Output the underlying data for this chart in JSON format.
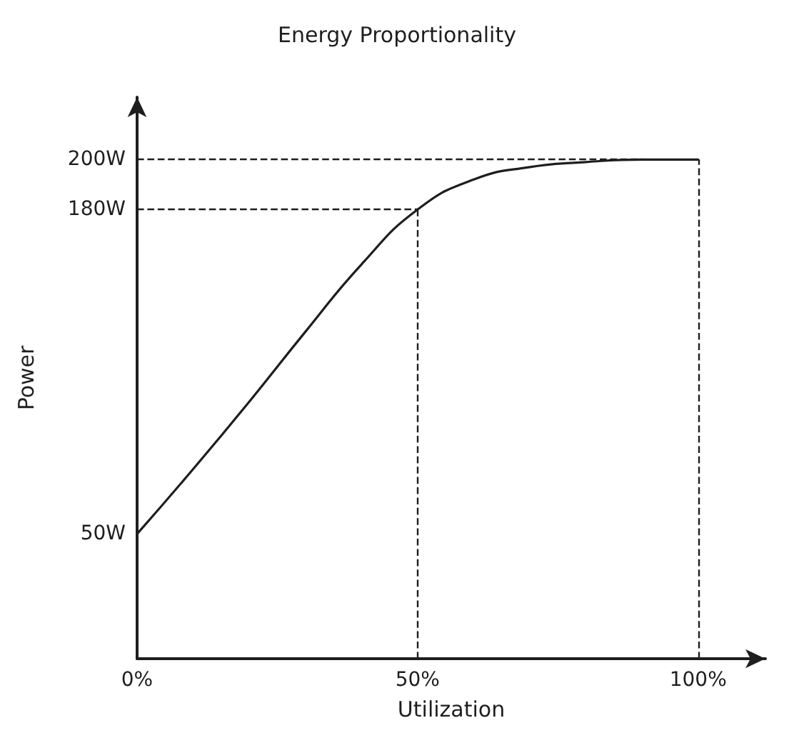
{
  "chart_data": {
    "type": "line",
    "title": "Energy Proportionality",
    "xlabel": "Utilization",
    "ylabel": "Power",
    "x": [
      0,
      10,
      20,
      30,
      40,
      50,
      60,
      70,
      80,
      90,
      100
    ],
    "series": [
      {
        "color": "#1e1e1e",
        "values": [
          50,
          76,
          103,
          131,
          158,
          180,
          192,
          197,
          199,
          200,
          200
        ]
      }
    ],
    "xlim": [
      0,
      112
    ],
    "ylim": [
      0,
      225
    ],
    "xticks": [
      {
        "value": 0,
        "label": "0%"
      },
      {
        "value": 50,
        "label": "50%"
      },
      {
        "value": 100,
        "label": "100%"
      }
    ],
    "yticks": [
      {
        "value": 50,
        "label": "50W"
      },
      {
        "value": 180,
        "label": "180W"
      },
      {
        "value": 200,
        "label": "200W"
      }
    ],
    "ref_lines": [
      {
        "axis": "y",
        "value": 200,
        "line_style": "dashed",
        "color": "#1e1e1e"
      },
      {
        "axis": "y",
        "value": 180,
        "line_style": "dashed",
        "color": "#1e1e1e"
      },
      {
        "axis": "x",
        "value": 50,
        "line_style": "dashed",
        "color": "#1e1e1e"
      },
      {
        "axis": "x",
        "value": 100,
        "line_style": "dashed",
        "color": "#1e1e1e"
      }
    ],
    "grid": false,
    "marker": "none",
    "line_style": "solid"
  }
}
